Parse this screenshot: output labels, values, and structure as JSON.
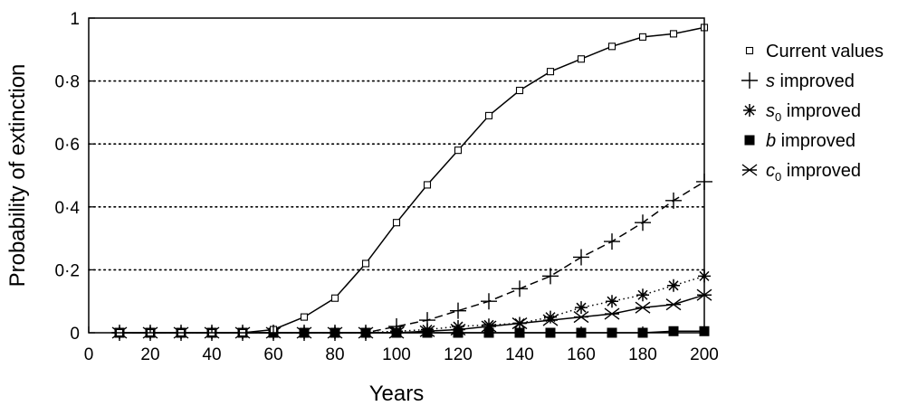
{
  "chart_data": {
    "type": "line",
    "xlabel": "Years",
    "ylabel": "Probability of extinction",
    "xlim": [
      0,
      200
    ],
    "ylim": [
      0,
      1
    ],
    "x_ticks": [
      "0",
      "20",
      "40",
      "60",
      "80",
      "100",
      "120",
      "140",
      "160",
      "180",
      "200"
    ],
    "y_ticks": [
      "0",
      "0·2",
      "0·4",
      "0·6",
      "0·8",
      "1"
    ],
    "grid": "dotted horizontal lines at 0.2, 0.4, 0.6, 0.8",
    "legend_position": "right",
    "x": [
      10,
      20,
      30,
      40,
      50,
      60,
      70,
      80,
      90,
      100,
      110,
      120,
      130,
      140,
      150,
      160,
      170,
      180,
      190,
      200
    ],
    "series": [
      {
        "name": "Current values",
        "marker": "open-square",
        "line": "solid",
        "values": [
          0,
          0,
          0,
          0,
          0,
          0.01,
          0.05,
          0.11,
          0.22,
          0.35,
          0.47,
          0.58,
          0.69,
          0.77,
          0.83,
          0.87,
          0.91,
          0.94,
          0.95,
          0.97
        ]
      },
      {
        "name": "s improved",
        "name_symbol": "s",
        "name_sub": "",
        "name_rest": " improved",
        "marker": "plus",
        "line": "dashed",
        "values": [
          0,
          0,
          0,
          0,
          0,
          0,
          0,
          0,
          0,
          0.02,
          0.04,
          0.07,
          0.1,
          0.14,
          0.18,
          0.24,
          0.29,
          0.35,
          0.42,
          0.48
        ]
      },
      {
        "name": "s0 improved",
        "name_symbol": "s",
        "name_sub": "0",
        "name_rest": " improved",
        "marker": "asterisk",
        "line": "dotted",
        "values": [
          0,
          0,
          0,
          0,
          0,
          0,
          0,
          0,
          0,
          0.005,
          0.01,
          0.02,
          0.025,
          0.03,
          0.05,
          0.08,
          0.1,
          0.12,
          0.15,
          0.18
        ]
      },
      {
        "name": "b improved",
        "name_symbol": "b",
        "name_sub": "",
        "name_rest": " improved",
        "marker": "filled-square",
        "line": "solid",
        "values": [
          0,
          0,
          0,
          0,
          0,
          0,
          0,
          0,
          0,
          0,
          0,
          0,
          0,
          0,
          0,
          0,
          0,
          0,
          0.005,
          0.005
        ]
      },
      {
        "name": "c0 improved",
        "name_symbol": "c",
        "name_sub": "0",
        "name_rest": " improved",
        "marker": "x-star",
        "line": "solid",
        "values": [
          0,
          0,
          0,
          0,
          0,
          0,
          0,
          0,
          0,
          0,
          0.005,
          0.01,
          0.02,
          0.03,
          0.04,
          0.05,
          0.06,
          0.08,
          0.09,
          0.12
        ]
      }
    ]
  },
  "legend": {
    "items": [
      {
        "symbol": "",
        "sub": "",
        "rest": "Current values"
      },
      {
        "symbol": "s",
        "sub": "",
        "rest": " improved"
      },
      {
        "symbol": "s",
        "sub": "0",
        "rest": " improved"
      },
      {
        "symbol": "b",
        "sub": "",
        "rest": " improved"
      },
      {
        "symbol": "c",
        "sub": "0",
        "rest": " improved"
      }
    ]
  }
}
